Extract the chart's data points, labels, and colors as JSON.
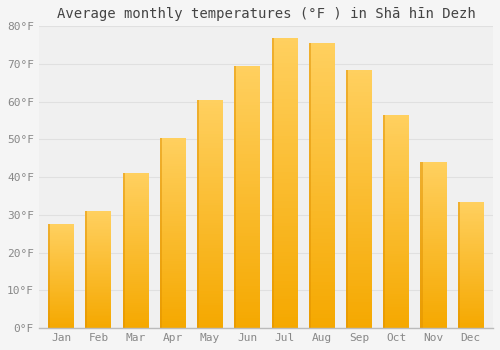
{
  "title": "Average monthly temperatures (°F ) in Shā hīn Dezh",
  "months": [
    "Jan",
    "Feb",
    "Mar",
    "Apr",
    "May",
    "Jun",
    "Jul",
    "Aug",
    "Sep",
    "Oct",
    "Nov",
    "Dec"
  ],
  "values": [
    27.5,
    31,
    41,
    50.5,
    60.5,
    69.5,
    77,
    75.5,
    68.5,
    56.5,
    44,
    33.5
  ],
  "ylim": [
    0,
    80
  ],
  "yticks": [
    0,
    10,
    20,
    30,
    40,
    50,
    60,
    70,
    80
  ],
  "ytick_labels": [
    "0°F",
    "10°F",
    "20°F",
    "30°F",
    "40°F",
    "50°F",
    "60°F",
    "70°F",
    "80°F"
  ],
  "bar_color_bottom": "#F5A800",
  "bar_color_top": "#FFD060",
  "bar_color_edge": "#E09000",
  "background_color": "#f5f5f5",
  "plot_bg_color": "#f0f0f0",
  "grid_color": "#e0e0e0",
  "title_fontsize": 10,
  "tick_fontsize": 8,
  "tick_color": "#888888",
  "bar_width": 0.7
}
